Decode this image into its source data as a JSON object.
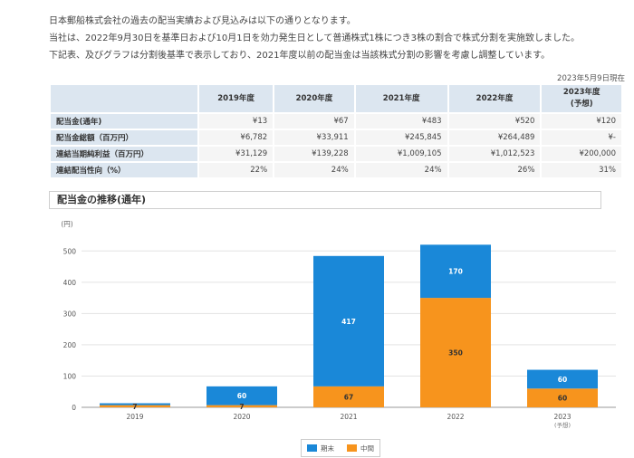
{
  "intro": [
    "日本郵船株式会社の過去の配当実績および見込みは以下の通りとなります。",
    "当社は、2022年9月30日を基準日および10月1日を効力発生日として普通株式1株につき3株の割合で株式分割を実施致しました。",
    "下記表、及びグラフは分割後基準で表示しており、2021年度以前の配当金は当該株式分割の影響を考慮し調整しています。"
  ],
  "as_of": "2023年5月9日現在",
  "table": {
    "headers": [
      "2019年度",
      "2020年度",
      "2021年度",
      "2022年度",
      "2023年度\n(予想)"
    ],
    "rows": [
      {
        "label": "配当金(通年)",
        "values": [
          "¥13",
          "¥67",
          "¥483",
          "¥520",
          "¥120"
        ]
      },
      {
        "label": "配当金総額（百万円）",
        "values": [
          "¥6,782",
          "¥33,911",
          "¥245,845",
          "¥264,489",
          "¥-"
        ]
      },
      {
        "label": "連結当期純利益（百万円）",
        "values": [
          "¥31,129",
          "¥139,228",
          "¥1,009,105",
          "¥1,012,523",
          "¥200,000"
        ]
      },
      {
        "label": "連結配当性向（%）",
        "values": [
          "22%",
          "24%",
          "24%",
          "26%",
          "31%"
        ]
      }
    ]
  },
  "section_title": "配当金の推移(通年)",
  "colors": {
    "term_end": "#1a88d8",
    "interim": "#f7941d"
  },
  "chart_data": {
    "type": "bar",
    "stacked": true,
    "title": "配当金の推移(通年)",
    "y_unit": "(円)",
    "categories": [
      "2019",
      "2020",
      "2021",
      "2022",
      "2023"
    ],
    "category_sublabels": [
      "",
      "",
      "",
      "",
      "(予想)"
    ],
    "series": [
      {
        "name": "中間",
        "values": [
          7,
          7,
          67,
          350,
          60
        ],
        "labels": [
          "7",
          "7",
          "67",
          "350",
          "60"
        ]
      },
      {
        "name": "期末",
        "values": [
          6,
          60,
          417,
          170,
          60
        ],
        "labels": [
          "",
          "60",
          "417",
          "170",
          "60"
        ]
      }
    ],
    "ylim": [
      0,
      550
    ],
    "yticks": [
      0,
      100,
      200,
      300,
      400,
      500
    ],
    "grid": true,
    "legend": "bottom-center",
    "legend_order": [
      "期末",
      "中間"
    ]
  }
}
